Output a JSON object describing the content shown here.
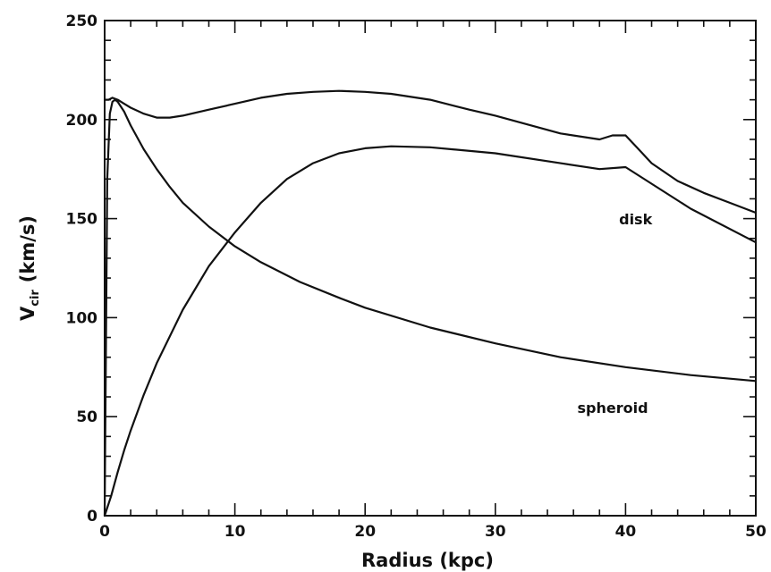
{
  "chart_data": {
    "type": "line",
    "title": "",
    "xlabel": "Radius   (kpc)",
    "ylabel_main": "V",
    "ylabel_sub": "cir",
    "ylabel_units": "(km/s)",
    "xlim": [
      0,
      50
    ],
    "ylim": [
      0,
      250
    ],
    "x_ticks": [
      0,
      10,
      20,
      30,
      40,
      50
    ],
    "y_ticks": [
      0,
      50,
      100,
      150,
      200,
      250
    ],
    "x_tick_labels": [
      "0",
      "10",
      "20",
      "30",
      "40",
      "50"
    ],
    "y_tick_labels": [
      "0",
      "50",
      "100",
      "150",
      "200",
      "250"
    ],
    "grid": false,
    "legend": "none",
    "annotations": [
      {
        "text": "disk",
        "x": 39.5,
        "y": 147
      },
      {
        "text": "spheroid",
        "x": 36.3,
        "y": 52
      }
    ],
    "series": [
      {
        "x": [
          0,
          0.3,
          0.6,
          1,
          1.5,
          2,
          3,
          4,
          5,
          6,
          8,
          10,
          12,
          14,
          16,
          18,
          20,
          22,
          25,
          28,
          30,
          35,
          38,
          39,
          40,
          41,
          42,
          44,
          46,
          48,
          50
        ],
        "y": [
          210,
          210,
          211,
          210,
          208,
          206,
          203,
          201,
          201,
          202,
          205,
          208,
          211,
          213,
          214,
          214.5,
          214,
          213,
          210,
          205,
          202,
          193,
          190,
          192,
          192,
          185,
          178,
          169,
          163,
          158,
          153
        ]
      },
      {
        "x": [
          0,
          0.5,
          1,
          1.5,
          2,
          3,
          4,
          6,
          8,
          10,
          12,
          14,
          16,
          18,
          20,
          22,
          25,
          30,
          35,
          38,
          40,
          45,
          50
        ],
        "y": [
          0,
          10,
          22,
          33,
          43,
          61,
          77,
          104,
          126,
          143,
          158,
          170,
          178,
          183,
          185.5,
          186.5,
          186,
          183,
          178,
          175,
          176,
          155,
          138
        ]
      },
      {
        "x": [
          0,
          0.2,
          0.4,
          0.6,
          0.8,
          1,
          1.5,
          2,
          3,
          4,
          5,
          6,
          8,
          10,
          12,
          15,
          18,
          20,
          25,
          30,
          35,
          40,
          45,
          50
        ],
        "y": [
          0,
          170,
          203,
          209,
          210,
          209,
          204,
          197,
          185,
          175,
          166,
          158,
          146,
          136,
          128,
          118,
          110,
          105,
          95,
          87,
          80,
          75,
          71,
          68
        ]
      }
    ]
  }
}
